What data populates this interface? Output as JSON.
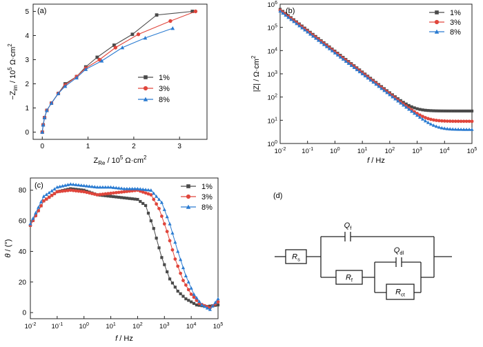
{
  "chart_data": [
    {
      "panel_label": "(a)",
      "type": "scatter",
      "xlabel_main": "Z",
      "xlabel_sub": "Re",
      "xlabel_unit": " / 10",
      "xlabel_sup": "5",
      "xlabel_tail": " Ω·cm",
      "xlabel_sup2": "2",
      "ylabel_main": "−Z",
      "ylabel_sub": "im",
      "ylabel_unit": " / 10",
      "ylabel_sup": "5",
      "ylabel_tail": " Ω·cm",
      "ylabel_sup2": "2",
      "xlim": [
        -0.2,
        3.6
      ],
      "ylim": [
        -0.3,
        5.3
      ],
      "xticks": [
        0,
        1,
        2,
        3
      ],
      "yticks": [
        0,
        1,
        2,
        3,
        4,
        5
      ],
      "legend": "center-right",
      "series": [
        {
          "name": "1%",
          "color": "#4a4a4a",
          "marker": "square",
          "x": [
            0,
            0.02,
            0.05,
            0.1,
            0.2,
            0.35,
            0.5,
            0.75,
            0.95,
            1.2,
            1.57,
            1.97,
            2.5,
            3.28
          ],
          "y": [
            0,
            0.3,
            0.6,
            0.9,
            1.2,
            1.6,
            2.0,
            2.3,
            2.7,
            3.1,
            3.6,
            4.05,
            4.85,
            5.0
          ]
        },
        {
          "name": "3%",
          "color": "#e0463c",
          "marker": "circle",
          "x": [
            0,
            0.02,
            0.05,
            0.1,
            0.2,
            0.35,
            0.5,
            0.75,
            0.95,
            1.25,
            1.6,
            2.1,
            2.8,
            3.35
          ],
          "y": [
            0,
            0.3,
            0.6,
            0.9,
            1.2,
            1.6,
            1.95,
            2.3,
            2.65,
            3.0,
            3.5,
            4.05,
            4.6,
            5.0
          ]
        },
        {
          "name": "8%",
          "color": "#2a7bd1",
          "marker": "triangle",
          "x": [
            0,
            0.02,
            0.05,
            0.1,
            0.2,
            0.35,
            0.5,
            0.75,
            0.95,
            1.3,
            1.75,
            2.25,
            2.85
          ],
          "y": [
            0,
            0.3,
            0.6,
            0.9,
            1.2,
            1.6,
            1.9,
            2.25,
            2.6,
            2.95,
            3.5,
            3.9,
            4.3
          ]
        }
      ]
    },
    {
      "panel_label": "(b)",
      "type": "line",
      "xlabel_main": "f",
      "xlabel_unit": " / Hz",
      "ylabel_text": "|Z| / Ω·cm",
      "ylabel_sup": "2",
      "x_scale": "log",
      "y_scale": "log",
      "xlim": [
        0.01,
        100000
      ],
      "ylim": [
        1,
        1000000
      ],
      "xtick_exponents": [
        -2,
        -1,
        0,
        1,
        2,
        3,
        4,
        5
      ],
      "ytick_exponents": [
        0,
        1,
        2,
        3,
        4,
        5,
        6
      ],
      "legend": "top-right",
      "series": [
        {
          "name": "1%",
          "color": "#4a4a4a",
          "marker": "square",
          "r_low_freq": 600000,
          "r_solution": 25,
          "knee": 0.9
        },
        {
          "name": "3%",
          "color": "#e0463c",
          "marker": "circle",
          "r_low_freq": 550000,
          "r_solution": 9,
          "knee": 0.9
        },
        {
          "name": "8%",
          "color": "#2a7bd1",
          "marker": "triangle",
          "r_low_freq": 500000,
          "r_solution": 4,
          "knee": 0.9
        }
      ]
    },
    {
      "panel_label": "(c)",
      "type": "line",
      "xlabel_main": "f",
      "xlabel_unit": " / Hz",
      "ylabel_main": "θ",
      "ylabel_unit": " / (°)",
      "x_scale": "log",
      "xlim": [
        0.01,
        100000
      ],
      "ylim": [
        -4,
        88
      ],
      "xtick_exponents": [
        -2,
        -1,
        0,
        1,
        2,
        3,
        4,
        5
      ],
      "yticks": [
        0,
        20,
        40,
        60,
        80
      ],
      "legend": "top-right",
      "series": [
        {
          "name": "1%",
          "color": "#4a4a4a",
          "marker": "square",
          "logf": [
            -2,
            -1.5,
            -1,
            -0.5,
            0,
            0.5,
            1,
            1.5,
            2,
            2.3,
            2.6,
            2.9,
            3.2,
            3.5,
            3.8,
            4.2,
            4.6,
            5
          ],
          "theta": [
            57,
            73,
            79,
            81,
            80,
            77,
            76,
            75,
            74,
            70,
            55,
            36,
            22,
            14,
            9,
            5,
            4,
            5
          ]
        },
        {
          "name": "3%",
          "color": "#e0463c",
          "marker": "circle",
          "logf": [
            -2,
            -1.5,
            -1,
            -0.5,
            0,
            0.5,
            1,
            1.5,
            2,
            2.5,
            2.8,
            3.1,
            3.4,
            3.7,
            4.0,
            4.3,
            4.7,
            5
          ],
          "theta": [
            57,
            73,
            79,
            80,
            79,
            77,
            78,
            79,
            80,
            77,
            68,
            53,
            35,
            21,
            12,
            6,
            3,
            7
          ]
        },
        {
          "name": "8%",
          "color": "#2a7bd1",
          "marker": "triangle",
          "logf": [
            -2,
            -1.5,
            -1,
            -0.5,
            0,
            0.5,
            1,
            1.5,
            2,
            2.5,
            2.9,
            3.2,
            3.5,
            3.8,
            4.1,
            4.4,
            4.7,
            5
          ],
          "theta": [
            58,
            76,
            82,
            84,
            83,
            82,
            82,
            81,
            81,
            80,
            72,
            58,
            40,
            24,
            12,
            5,
            2,
            9
          ]
        }
      ]
    }
  ],
  "circuit": {
    "panel_label": "(d)",
    "components": [
      {
        "key": "Rs",
        "letter": "R",
        "sub": "s",
        "kind": "resistor"
      },
      {
        "key": "Qf",
        "letter": "Q",
        "sub": "f",
        "kind": "cpe"
      },
      {
        "key": "Rf",
        "letter": "R",
        "sub": "f",
        "kind": "resistor"
      },
      {
        "key": "Qdl",
        "letter": "Q",
        "sub": "dl",
        "kind": "cpe"
      },
      {
        "key": "Rct",
        "letter": "R",
        "sub": "ct",
        "kind": "resistor"
      }
    ]
  }
}
